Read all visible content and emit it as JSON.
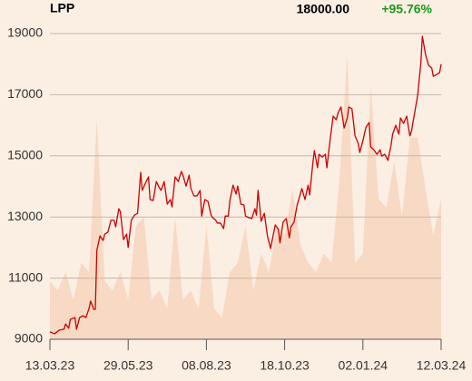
{
  "chart_data": {
    "type": "line",
    "title": "LPP",
    "last_price": "18000.00",
    "change": "+95.76%",
    "change_color": "#1a9a1a",
    "grid": true,
    "ylim": [
      9000,
      19000
    ],
    "yticks": [
      9000,
      11000,
      13000,
      15000,
      17000,
      19000
    ],
    "xlim": [
      0,
      250
    ],
    "xticks": [
      {
        "value": 0,
        "label": "13.03.23"
      },
      {
        "value": 50,
        "label": "29.05.23"
      },
      {
        "value": 100,
        "label": "08.08.23"
      },
      {
        "value": 150,
        "label": "18.10.23"
      },
      {
        "value": 200,
        "label": "02.01.24"
      },
      {
        "value": 250,
        "label": "12.03.24"
      }
    ],
    "series": [
      {
        "color": "#cc0000",
        "x": [
          0,
          3,
          6,
          9,
          10,
          12,
          13,
          16,
          17,
          19,
          21,
          23,
          25,
          26,
          28,
          29,
          30,
          32,
          34,
          35,
          37,
          39,
          41,
          42,
          44,
          45,
          47,
          49,
          50,
          52,
          54,
          56,
          58,
          59,
          61,
          63,
          64,
          66,
          68,
          70,
          71,
          73,
          75,
          77,
          78,
          80,
          82,
          84,
          85,
          87,
          89,
          90,
          92,
          94,
          96,
          97,
          99,
          101,
          103,
          104,
          106,
          107,
          109,
          111,
          112,
          114,
          115,
          117,
          119,
          120,
          122,
          124,
          125,
          127,
          129,
          131,
          132,
          133,
          135,
          137,
          139,
          141,
          142,
          144,
          146,
          147,
          149,
          151,
          153,
          154,
          156,
          158,
          160,
          161,
          163,
          165,
          166,
          168,
          169,
          171,
          172,
          174,
          176,
          177,
          179,
          181,
          183,
          184,
          186,
          188,
          190,
          191,
          193,
          195,
          197,
          198,
          200,
          202,
          204,
          205,
          207,
          209,
          211,
          212,
          214,
          216,
          218,
          219,
          221,
          223,
          224,
          226,
          228,
          230,
          231,
          233,
          235,
          237,
          238,
          240,
          242,
          244,
          245,
          247,
          249,
          250
        ],
        "values": [
          9240,
          9180,
          9300,
          9330,
          9500,
          9360,
          9650,
          9710,
          9330,
          9710,
          9770,
          9710,
          10010,
          10250,
          9980,
          9980,
          11910,
          12380,
          12230,
          12440,
          12500,
          12890,
          12890,
          12680,
          13270,
          13180,
          12260,
          12440,
          12000,
          12890,
          13060,
          13120,
          14460,
          13870,
          14100,
          14310,
          13570,
          13540,
          14160,
          13950,
          13870,
          14160,
          13420,
          13570,
          13330,
          14310,
          14160,
          14490,
          14370,
          14010,
          14370,
          13950,
          13690,
          13690,
          13870,
          13030,
          13570,
          13510,
          13060,
          12980,
          12890,
          12800,
          12800,
          12620,
          13030,
          13030,
          13540,
          14040,
          13750,
          14010,
          13420,
          13390,
          13030,
          12980,
          12950,
          13270,
          13060,
          13870,
          12860,
          13120,
          12380,
          11970,
          12230,
          12740,
          12590,
          12150,
          12830,
          12950,
          12320,
          12680,
          12830,
          13390,
          13750,
          13930,
          13570,
          14040,
          13720,
          14760,
          15170,
          14610,
          15050,
          14960,
          15050,
          14610,
          15500,
          16300,
          16180,
          16390,
          16600,
          15910,
          16240,
          16600,
          16540,
          15650,
          15410,
          15110,
          15500,
          15940,
          16090,
          15290,
          15200,
          15050,
          15200,
          14990,
          15050,
          14850,
          15350,
          15710,
          16000,
          15710,
          16240,
          16060,
          16300,
          15650,
          15800,
          16390,
          16980,
          18020,
          18910,
          18320,
          17960,
          17870,
          17600,
          17660,
          17720,
          18000
        ]
      }
    ],
    "volume": {
      "type": "area",
      "color": "#f7d9c4",
      "x": [
        0,
        5,
        10,
        15,
        20,
        25,
        30,
        35,
        40,
        45,
        50,
        55,
        60,
        65,
        70,
        75,
        80,
        85,
        90,
        95,
        100,
        105,
        110,
        115,
        120,
        125,
        130,
        135,
        140,
        145,
        150,
        155,
        160,
        165,
        170,
        175,
        180,
        185,
        190,
        195,
        200,
        205,
        210,
        215,
        220,
        225,
        230,
        235,
        240,
        245,
        250
      ],
      "values": [
        10900,
        10600,
        11200,
        10300,
        11500,
        11200,
        16200,
        10900,
        10600,
        11200,
        10300,
        12700,
        13000,
        10300,
        10600,
        10000,
        13000,
        10300,
        10600,
        10000,
        12700,
        10000,
        9700,
        11200,
        11500,
        12700,
        10600,
        11800,
        11200,
        12700,
        12400,
        13900,
        12100,
        11500,
        11200,
        11800,
        11500,
        14200,
        18300,
        11500,
        11800,
        17300,
        13600,
        13300,
        14800,
        13000,
        15600,
        15600,
        13900,
        12400,
        13600
      ]
    }
  }
}
